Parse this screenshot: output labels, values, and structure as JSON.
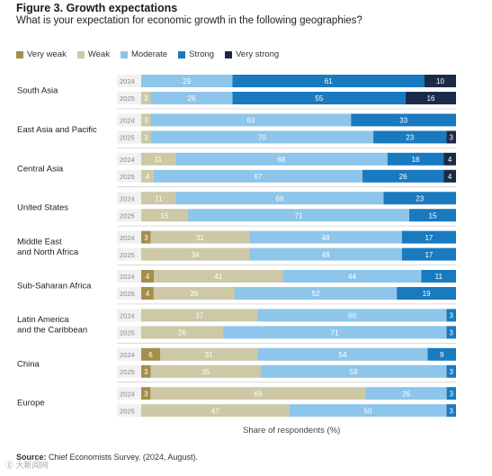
{
  "title": "Figure 3. Growth expectations",
  "subtitle": "What is your expectation for economic growth in the following geographies?",
  "xlabel": "Share of respondents (%)",
  "source_label": "Source:",
  "source_text": "Chief Economists Survey. (2024, August).",
  "watermark": "ⓖ 大新闻网",
  "colors": {
    "very_weak": "#a58e4c",
    "weak": "#cdc8a6",
    "moderate": "#8ec5ea",
    "strong": "#1a7ac0",
    "very_strong": "#1c2a4a",
    "year_bg": "#f1f1f1",
    "divider": "#d0d0d0"
  },
  "chart_data": {
    "type": "bar",
    "orientation": "horizontal",
    "stacked": true,
    "normalized": true,
    "title": "Figure 3. Growth expectations",
    "subtitle": "What is your expectation for economic growth in the following geographies?",
    "xlabel": "Share of respondents (%)",
    "xlim": [
      0,
      100
    ],
    "legend_position": "top-left",
    "grid": false,
    "series_names": [
      "Very weak",
      "Weak",
      "Moderate",
      "Strong",
      "Very strong"
    ],
    "groups": [
      {
        "name": "South Asia",
        "rows": [
          {
            "year": "2024",
            "values": [
              0,
              0,
              29,
              61,
              10
            ]
          },
          {
            "year": "2025",
            "values": [
              0,
              3,
              26,
              55,
              16
            ]
          }
        ]
      },
      {
        "name": "East Asia and Pacific",
        "rows": [
          {
            "year": "2024",
            "values": [
              0,
              3,
              63,
              33,
              0
            ]
          },
          {
            "year": "2025",
            "values": [
              0,
              3,
              70,
              23,
              3
            ]
          }
        ]
      },
      {
        "name": "Central Asia",
        "rows": [
          {
            "year": "2024",
            "values": [
              0,
              11,
              68,
              18,
              4
            ]
          },
          {
            "year": "2025",
            "values": [
              0,
              4,
              67,
              26,
              4
            ]
          }
        ]
      },
      {
        "name": "United States",
        "rows": [
          {
            "year": "2024",
            "values": [
              0,
              11,
              66,
              23,
              0
            ]
          },
          {
            "year": "2025",
            "values": [
              0,
              15,
              71,
              15,
              0
            ]
          }
        ]
      },
      {
        "name": "Middle East and North Africa",
        "rows": [
          {
            "year": "2024",
            "values": [
              3,
              31,
              48,
              17,
              0
            ]
          },
          {
            "year": "2025",
            "values": [
              0,
              34,
              48,
              17,
              0
            ]
          }
        ]
      },
      {
        "name": "Sub-Saharan Africa",
        "rows": [
          {
            "year": "2024",
            "values": [
              4,
              41,
              44,
              11,
              0
            ]
          },
          {
            "year": "2025",
            "values": [
              4,
              26,
              52,
              19,
              0
            ]
          }
        ]
      },
      {
        "name": "Latin America and the Caribbean",
        "rows": [
          {
            "year": "2024",
            "values": [
              0,
              37,
              60,
              3,
              0
            ]
          },
          {
            "year": "2025",
            "values": [
              0,
              26,
              71,
              3,
              0
            ]
          }
        ]
      },
      {
        "name": "China",
        "rows": [
          {
            "year": "2024",
            "values": [
              6,
              31,
              54,
              9,
              0
            ]
          },
          {
            "year": "2025",
            "values": [
              3,
              35,
              59,
              3,
              0
            ]
          }
        ]
      },
      {
        "name": "Europe",
        "rows": [
          {
            "year": "2024",
            "values": [
              3,
              69,
              26,
              3,
              0
            ]
          },
          {
            "year": "2025",
            "values": [
              0,
              47,
              50,
              3,
              0
            ]
          }
        ]
      }
    ]
  }
}
